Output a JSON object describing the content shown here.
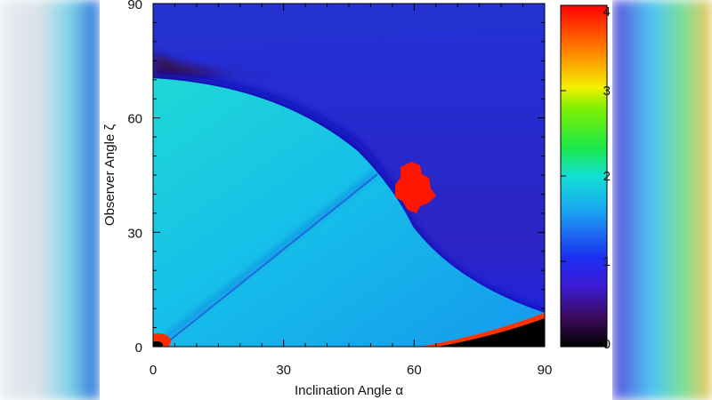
{
  "chart_data": {
    "type": "heatmap",
    "xlabel": "Inclination Angle α",
    "ylabel": "Observer Angle ζ",
    "xlim": [
      0,
      90
    ],
    "ylim": [
      0,
      90
    ],
    "xticks": [
      0,
      30,
      60,
      90
    ],
    "yticks": [
      0,
      30,
      60,
      90
    ],
    "colorbar": {
      "range": [
        0,
        4
      ],
      "ticks": [
        "0",
        "1",
        "2",
        "3",
        "4"
      ],
      "colormap": "rainbow (black-purple-blue-cyan-green-yellow-red)"
    },
    "regions": [
      {
        "value": 1.0,
        "description": "upper region above boundary curve"
      },
      {
        "value": 1.5,
        "description": "lower region below boundary curve"
      },
      {
        "value": 4.0,
        "center": [
          61,
          43
        ],
        "description": "peak"
      },
      {
        "value": 0.0,
        "center": [
          85,
          2
        ],
        "description": "zero corner"
      }
    ]
  },
  "colors": {
    "upper": "#1f29e8",
    "lower": "#16a6ec",
    "peak": "#ff1a00",
    "dark": "#000000"
  }
}
